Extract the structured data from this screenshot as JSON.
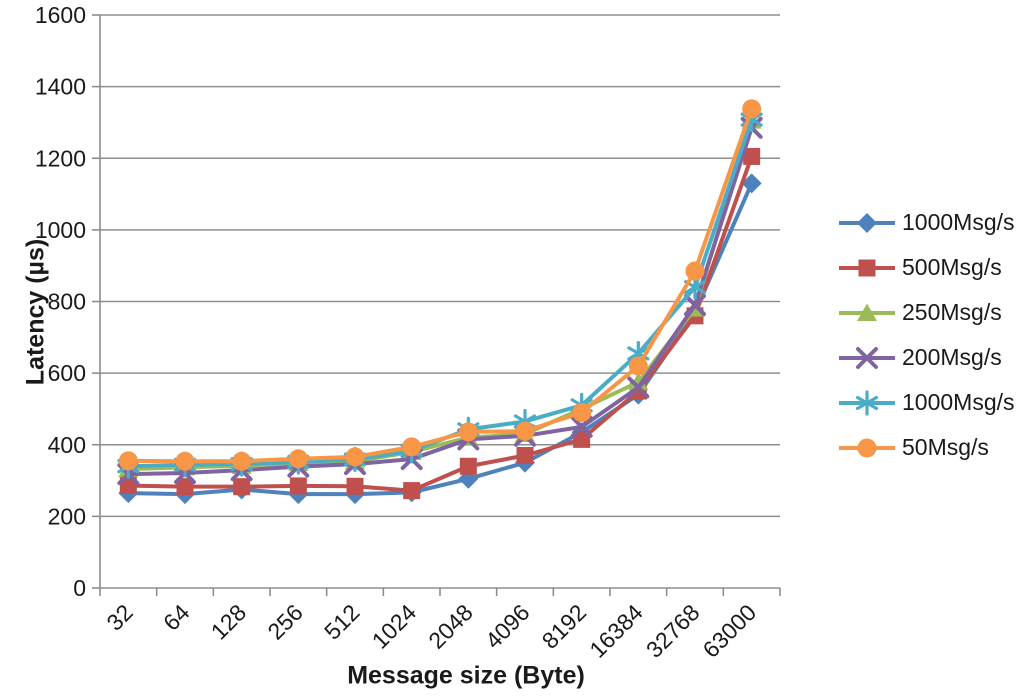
{
  "chart_data": {
    "type": "line",
    "title": "",
    "xlabel": "Message size (Byte)",
    "ylabel": "Latency (µs)",
    "ylim": [
      0,
      1600
    ],
    "ytick_step": 200,
    "yticks": [
      0,
      200,
      400,
      600,
      800,
      1000,
      1200,
      1400,
      1600
    ],
    "categories": [
      "32",
      "64",
      "128",
      "256",
      "512",
      "1024",
      "2048",
      "4096",
      "8192",
      "16384",
      "32768",
      "63000"
    ],
    "grid": "horizontal-on",
    "legend_position": "right",
    "axis_color": "#8E8E8E",
    "text_color": "#1a1a1a",
    "series": [
      {
        "name": "1000Msg/s",
        "color": "#4F81BD",
        "marker": "diamond",
        "values": [
          265,
          262,
          275,
          262,
          262,
          267,
          305,
          350,
          435,
          540,
          770,
          1130
        ]
      },
      {
        "name": "500Msg/s",
        "color": "#C0504D",
        "marker": "square",
        "values": [
          286,
          283,
          283,
          285,
          284,
          272,
          340,
          370,
          415,
          550,
          760,
          1205
        ]
      },
      {
        "name": "250Msg/s",
        "color": "#9BBB59",
        "marker": "triangle",
        "values": [
          332,
          337,
          341,
          349,
          353,
          380,
          420,
          430,
          500,
          575,
          780,
          1305
        ]
      },
      {
        "name": "200Msg/s",
        "color": "#8064A2",
        "marker": "x",
        "values": [
          318,
          321,
          329,
          339,
          346,
          360,
          415,
          425,
          450,
          560,
          790,
          1285
        ]
      },
      {
        "name": "1000Msg/s",
        "color": "#4BACC6",
        "marker": "star",
        "values": [
          340,
          344,
          346,
          352,
          359,
          383,
          443,
          465,
          510,
          655,
          840,
          1308
        ]
      },
      {
        "name": "50Msg/s",
        "color": "#F79646",
        "marker": "circle",
        "values": [
          355,
          354,
          354,
          361,
          366,
          394,
          436,
          438,
          490,
          620,
          885,
          1338
        ]
      }
    ]
  }
}
